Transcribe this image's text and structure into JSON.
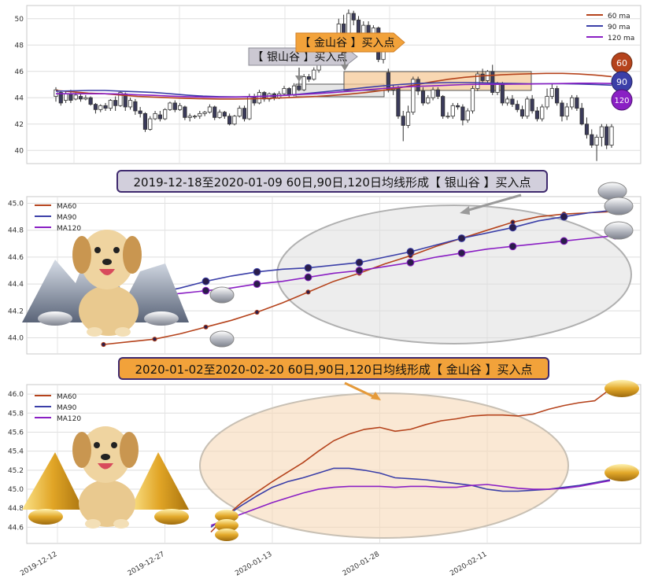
{
  "colors": {
    "ma60": "#b5431c",
    "ma90": "#3b3fa8",
    "ma120": "#8a1fc4",
    "silver_box": "#c8c8c8",
    "gold_box": "#f6c998",
    "silver_banner_fill": "#d2cfdc",
    "gold_banner_fill": "#f2a23a",
    "banner_border": "#3f2a6e",
    "candle_up": "#ffffff",
    "candle_down": "#3a3a5a"
  },
  "chart_data": [
    {
      "type": "candlestick",
      "ylim": [
        39,
        51
      ],
      "yticks": [
        40,
        42,
        44,
        46,
        48,
        50
      ],
      "legend": {
        "position": "top-right",
        "items": [
          "60 ma",
          "90 ma",
          "120 ma"
        ]
      },
      "annotations": {
        "silver": "【 银山谷 】买入点",
        "gold": "【 金山谷 】买入点"
      },
      "badges": [
        "60",
        "90",
        "120"
      ],
      "candles": [
        [
          44.1,
          44.6,
          43.7,
          44.8
        ],
        [
          44.4,
          43.6,
          43.4,
          44.5
        ],
        [
          43.8,
          44.3,
          43.6,
          44.5
        ],
        [
          44.3,
          43.8,
          43.6,
          44.6
        ],
        [
          43.9,
          44.2,
          43.8,
          44.4
        ],
        [
          44.1,
          43.9,
          43.7,
          44.3
        ],
        [
          43.9,
          44.0,
          43.8,
          44.2
        ],
        [
          44.0,
          43.5,
          43.4,
          44.1
        ],
        [
          43.5,
          43.1,
          42.8,
          43.6
        ],
        [
          43.1,
          43.4,
          42.9,
          43.5
        ],
        [
          43.4,
          43.2,
          43.0,
          43.6
        ],
        [
          43.2,
          43.8,
          43.0,
          43.9
        ],
        [
          43.8,
          43.4,
          43.0,
          44.1
        ],
        [
          43.4,
          44.4,
          43.3,
          44.5
        ],
        [
          44.3,
          43.3,
          43.0,
          44.4
        ],
        [
          43.3,
          43.8,
          43.1,
          44.0
        ],
        [
          43.7,
          43.0,
          42.7,
          43.9
        ],
        [
          43.0,
          42.8,
          42.5,
          43.3
        ],
        [
          42.8,
          41.6,
          41.4,
          42.9
        ],
        [
          41.6,
          42.4,
          41.5,
          42.6
        ],
        [
          42.4,
          42.8,
          42.3,
          43.0
        ],
        [
          42.7,
          42.4,
          42.2,
          43.0
        ],
        [
          42.4,
          43.1,
          42.3,
          43.2
        ],
        [
          43.1,
          43.6,
          43.0,
          43.7
        ],
        [
          43.6,
          43.1,
          42.9,
          43.8
        ],
        [
          43.1,
          43.4,
          43.0,
          43.6
        ],
        [
          43.3,
          42.5,
          42.3,
          43.4
        ],
        [
          42.5,
          42.6,
          42.2,
          42.8
        ],
        [
          42.6,
          42.6,
          42.4,
          42.7
        ],
        [
          42.6,
          42.8,
          42.4,
          43.0
        ],
        [
          42.8,
          42.9,
          42.6,
          43.0
        ],
        [
          42.9,
          43.3,
          42.8,
          43.5
        ],
        [
          43.3,
          42.5,
          42.3,
          43.4
        ],
        [
          42.5,
          42.9,
          42.4,
          43.1
        ],
        [
          42.9,
          42.6,
          42.4,
          43.0
        ],
        [
          42.6,
          42.0,
          41.9,
          42.8
        ],
        [
          42.0,
          42.6,
          41.9,
          42.7
        ],
        [
          42.6,
          43.2,
          42.5,
          43.4
        ],
        [
          43.2,
          42.4,
          42.2,
          43.4
        ],
        [
          42.4,
          44.1,
          42.3,
          44.3
        ],
        [
          44.1,
          43.6,
          43.4,
          44.3
        ],
        [
          43.6,
          44.4,
          43.5,
          44.6
        ],
        [
          44.4,
          43.9,
          43.7,
          44.5
        ],
        [
          43.9,
          44.3,
          43.7,
          44.4
        ],
        [
          44.3,
          44.0,
          43.8,
          44.4
        ],
        [
          44.0,
          44.3,
          43.9,
          44.5
        ],
        [
          44.3,
          44.7,
          44.2,
          44.9
        ],
        [
          44.7,
          44.2,
          44.0,
          44.8
        ],
        [
          44.2,
          44.9,
          44.1,
          45.1
        ],
        [
          44.9,
          44.6,
          44.5,
          45.3
        ],
        [
          44.6,
          45.6,
          44.5,
          45.8
        ],
        [
          45.6,
          45.4,
          45.2,
          45.8
        ],
        [
          45.4,
          46.1,
          45.3,
          46.3
        ],
        [
          46.1,
          46.8,
          45.9,
          46.9
        ],
        [
          46.7,
          48.2,
          46.5,
          48.4
        ],
        [
          48.2,
          47.9,
          47.6,
          48.5
        ],
        [
          47.9,
          48.6,
          47.8,
          48.8
        ],
        [
          48.6,
          49.6,
          48.4,
          50.0
        ],
        [
          49.6,
          48.8,
          48.6,
          50.3
        ],
        [
          48.8,
          50.4,
          48.7,
          50.7
        ],
        [
          50.4,
          49.9,
          49.5,
          50.6
        ],
        [
          49.9,
          48.6,
          48.2,
          50.2
        ],
        [
          48.6,
          49.5,
          48.4,
          49.8
        ],
        [
          49.5,
          48.2,
          47.9,
          49.8
        ],
        [
          48.2,
          49.3,
          48.0,
          49.5
        ],
        [
          49.3,
          46.9,
          46.7,
          49.4
        ],
        [
          46.9,
          47.6,
          46.6,
          48.0
        ],
        [
          45.9,
          44.6,
          44.4,
          46.2
        ],
        [
          44.6,
          44.7,
          44.2,
          45.0
        ],
        [
          44.7,
          42.6,
          42.4,
          44.9
        ],
        [
          42.6,
          41.9,
          40.7,
          43.0
        ],
        [
          41.9,
          42.9,
          41.7,
          43.4
        ],
        [
          42.9,
          45.4,
          42.7,
          45.6
        ],
        [
          45.4,
          44.5,
          44.2,
          45.6
        ],
        [
          44.5,
          43.6,
          43.4,
          44.8
        ],
        [
          43.6,
          44.0,
          43.5,
          44.2
        ],
        [
          44.0,
          44.6,
          43.8,
          44.8
        ],
        [
          44.6,
          44.1,
          43.9,
          44.8
        ],
        [
          44.1,
          42.6,
          42.4,
          44.2
        ],
        [
          42.6,
          42.6,
          42.4,
          42.9
        ],
        [
          42.6,
          43.4,
          42.4,
          43.6
        ],
        [
          43.4,
          43.3,
          43.1,
          43.6
        ],
        [
          43.3,
          42.3,
          41.9,
          43.5
        ],
        [
          42.3,
          43.0,
          42.1,
          43.2
        ],
        [
          43.0,
          44.7,
          42.8,
          44.9
        ],
        [
          44.7,
          45.8,
          44.5,
          46.0
        ],
        [
          45.8,
          45.3,
          45.1,
          46.2
        ],
        [
          45.3,
          46.0,
          45.1,
          46.1
        ],
        [
          46.0,
          44.4,
          44.2,
          46.5
        ],
        [
          44.4,
          45.0,
          44.2,
          45.2
        ],
        [
          45.0,
          43.6,
          43.4,
          45.2
        ],
        [
          43.6,
          43.9,
          43.4,
          44.1
        ],
        [
          43.9,
          43.5,
          43.3,
          44.2
        ],
        [
          43.5,
          43.1,
          42.9,
          43.8
        ],
        [
          43.1,
          42.6,
          42.4,
          43.4
        ],
        [
          42.6,
          43.9,
          42.4,
          44.1
        ],
        [
          43.9,
          43.0,
          42.8,
          44.2
        ],
        [
          43.0,
          42.4,
          42.2,
          43.3
        ],
        [
          42.4,
          43.3,
          42.2,
          43.5
        ],
        [
          43.3,
          44.1,
          43.1,
          44.7
        ],
        [
          44.1,
          44.7,
          43.9,
          45.1
        ],
        [
          44.7,
          43.6,
          43.4,
          44.9
        ],
        [
          43.6,
          42.6,
          42.2,
          43.8
        ],
        [
          42.6,
          43.3,
          42.3,
          43.6
        ],
        [
          43.3,
          44.0,
          43.1,
          44.2
        ],
        [
          44.0,
          43.2,
          43.0,
          44.2
        ],
        [
          43.2,
          42.0,
          41.9,
          43.6
        ],
        [
          42.0,
          41.2,
          40.9,
          42.5
        ],
        [
          41.2,
          40.4,
          40.2,
          41.6
        ],
        [
          40.4,
          41.0,
          39.2,
          41.2
        ],
        [
          41.0,
          41.8,
          40.3,
          42.0
        ],
        [
          41.8,
          40.4,
          40.1,
          42.0
        ],
        [
          40.4,
          41.8,
          40.2,
          42.0
        ]
      ],
      "ma60": [
        44.55,
        44.45,
        44.35,
        44.3,
        44.2,
        44.1,
        44.05,
        44.0,
        43.95,
        43.92,
        43.9,
        43.9,
        43.92,
        43.95,
        44.0,
        44.05,
        44.1,
        44.18,
        44.28,
        44.4,
        44.55,
        44.75,
        44.98,
        45.2,
        45.4,
        45.55,
        45.65,
        45.72,
        45.78,
        45.82,
        45.85,
        45.85,
        45.8,
        45.72,
        45.6
      ],
      "ma90": [
        44.5,
        44.52,
        44.55,
        44.55,
        44.5,
        44.45,
        44.4,
        44.3,
        44.2,
        44.12,
        44.08,
        44.06,
        44.08,
        44.12,
        44.18,
        44.28,
        44.4,
        44.52,
        44.65,
        44.78,
        44.9,
        45.0,
        45.08,
        45.12,
        45.15,
        45.15,
        45.13,
        45.1,
        45.08,
        45.06,
        45.06,
        45.06,
        45.04,
        45.0,
        44.95
      ],
      "ma120": [
        44.3,
        44.3,
        44.3,
        44.3,
        44.28,
        44.22,
        44.18,
        44.12,
        44.08,
        44.05,
        44.04,
        44.05,
        44.08,
        44.12,
        44.18,
        44.25,
        44.32,
        44.4,
        44.5,
        44.6,
        44.7,
        44.8,
        44.86,
        44.9,
        44.95,
        45.0,
        45.02,
        45.02,
        45.03,
        45.04,
        45.06,
        45.08,
        45.1,
        45.1,
        45.08
      ]
    },
    {
      "type": "line",
      "title": "2019-12-18至2020-01-09 60日,90日,120日均线形成【 银山谷 】买入点",
      "ylim": [
        43.88,
        45.05
      ],
      "yticks": [
        44.0,
        44.2,
        44.4,
        44.6,
        44.8,
        45.0
      ],
      "x_range": [
        0,
        24
      ],
      "legend": {
        "position": "top-left"
      },
      "series": [
        {
          "name": "MA60",
          "x": [
            3,
            4,
            5,
            6,
            7,
            8,
            9,
            10,
            11,
            12,
            13,
            14,
            15,
            16,
            17,
            18,
            19,
            20,
            21,
            22,
            23
          ],
          "values": [
            43.95,
            43.97,
            43.99,
            44.03,
            44.08,
            44.13,
            44.19,
            44.26,
            44.34,
            44.42,
            44.48,
            44.55,
            44.61,
            44.68,
            44.74,
            44.8,
            44.86,
            44.9,
            44.92,
            44.93,
            44.94
          ]
        },
        {
          "name": "MA90",
          "x": [
            3,
            4,
            5,
            6,
            7,
            8,
            9,
            10,
            11,
            12,
            13,
            14,
            15,
            16,
            17,
            18,
            19,
            20,
            21,
            22,
            23
          ],
          "values": [
            44.3,
            44.31,
            44.33,
            44.37,
            44.42,
            44.46,
            44.49,
            44.51,
            44.52,
            44.54,
            44.56,
            44.6,
            44.64,
            44.69,
            44.74,
            44.78,
            44.82,
            44.87,
            44.9,
            44.93,
            44.95
          ]
        },
        {
          "name": "MA120",
          "x": [
            3,
            4,
            5,
            6,
            7,
            8,
            9,
            10,
            11,
            12,
            13,
            14,
            15,
            16,
            17,
            18,
            19,
            20,
            21,
            22,
            23
          ],
          "values": [
            44.28,
            44.3,
            44.31,
            44.33,
            44.35,
            44.37,
            44.4,
            44.42,
            44.45,
            44.48,
            44.5,
            44.53,
            44.56,
            44.6,
            44.63,
            44.66,
            44.68,
            44.7,
            44.72,
            44.74,
            44.76
          ]
        }
      ]
    },
    {
      "type": "line",
      "title": "2020-01-02至2020-02-20 60日,90日,120日均线形成【 金山谷 】买入点",
      "ylim": [
        44.43,
        46.1
      ],
      "yticks": [
        44.6,
        44.8,
        45.0,
        45.2,
        45.4,
        45.6,
        45.8,
        46.0
      ],
      "x_range": [
        0,
        40
      ],
      "x_tick_positions": [
        2,
        9,
        16,
        23,
        30
      ],
      "x_tick_labels": [
        "2019-12-12",
        "2019-12-27",
        "2020-01-13",
        "2020-01-28",
        "2020-02-11"
      ],
      "legend": {
        "position": "top-left"
      },
      "series": [
        {
          "name": "MA60",
          "x": [
            12,
            13,
            14,
            15,
            16,
            17,
            18,
            19,
            20,
            21,
            22,
            23,
            24,
            25,
            26,
            27,
            28,
            29,
            30,
            31,
            32,
            33,
            34,
            35,
            36,
            37,
            38
          ],
          "values": [
            44.55,
            44.72,
            44.86,
            44.97,
            45.08,
            45.18,
            45.28,
            45.4,
            45.51,
            45.58,
            45.63,
            45.65,
            45.61,
            45.63,
            45.68,
            45.72,
            45.74,
            45.77,
            45.78,
            45.78,
            45.77,
            45.79,
            45.84,
            45.88,
            45.91,
            45.93,
            46.05
          ]
        },
        {
          "name": "MA90",
          "x": [
            12,
            13,
            14,
            15,
            16,
            17,
            18,
            19,
            20,
            21,
            22,
            23,
            24,
            25,
            26,
            27,
            28,
            29,
            30,
            31,
            32,
            33,
            34,
            35,
            36,
            37,
            38
          ],
          "values": [
            44.6,
            44.72,
            44.83,
            44.93,
            45.02,
            45.08,
            45.12,
            45.17,
            45.22,
            45.22,
            45.2,
            45.17,
            45.12,
            45.11,
            45.1,
            45.08,
            45.06,
            45.04,
            45.0,
            44.98,
            44.98,
            44.99,
            45.0,
            45.02,
            45.04,
            45.07,
            45.1
          ]
        },
        {
          "name": "MA120",
          "x": [
            12,
            13,
            14,
            15,
            16,
            17,
            18,
            19,
            20,
            21,
            22,
            23,
            24,
            25,
            26,
            27,
            28,
            29,
            30,
            31,
            32,
            33,
            34,
            35,
            36,
            37,
            38
          ],
          "values": [
            44.62,
            44.68,
            44.74,
            44.8,
            44.86,
            44.91,
            44.96,
            45.0,
            45.02,
            45.03,
            45.03,
            45.03,
            45.02,
            45.03,
            45.03,
            45.02,
            45.02,
            45.04,
            45.05,
            45.03,
            45.01,
            45.0,
            45.0,
            45.01,
            45.03,
            45.06,
            45.09
          ]
        }
      ]
    }
  ]
}
